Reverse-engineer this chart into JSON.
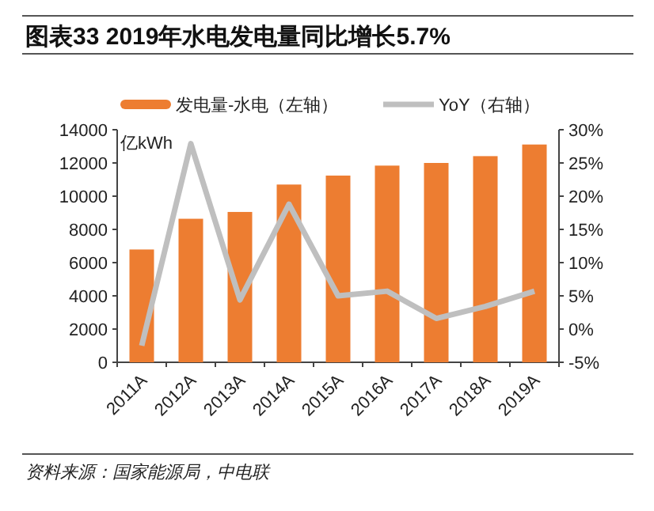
{
  "chart_data": {
    "type": "bar",
    "title": "图表33    2019年水电发电量同比增长5.7%",
    "ylabel": "亿kWh",
    "categories": [
      "2011A",
      "2012A",
      "2013A",
      "2014A",
      "2015A",
      "2016A",
      "2017A",
      "2018A",
      "2019A"
    ],
    "series": [
      {
        "name": "发电量-水电（左轴）",
        "color": "#ed7d31",
        "values": [
          6790,
          8640,
          9050,
          10700,
          11240,
          11840,
          12000,
          12410,
          13110
        ]
      },
      {
        "name": "YoY（右轴）",
        "type": "line",
        "axis": "y2",
        "color": "#bfbfbf",
        "values": [
          -2.5,
          27.9,
          4.4,
          18.8,
          5.0,
          5.7,
          1.6,
          3.4,
          5.7
        ]
      }
    ],
    "ylim": [
      0,
      14000
    ],
    "yticks": [
      0,
      2000,
      4000,
      6000,
      8000,
      10000,
      12000,
      14000
    ],
    "y2lim": [
      -5,
      30
    ],
    "y2ticks": [
      {
        "value": -5,
        "label": "-5%"
      },
      {
        "value": 0,
        "label": "0%"
      },
      {
        "value": 5,
        "label": "5%"
      },
      {
        "value": 10,
        "label": "10%"
      },
      {
        "value": 15,
        "label": "15%"
      },
      {
        "value": 20,
        "label": "20%"
      },
      {
        "value": 25,
        "label": "25%"
      },
      {
        "value": 30,
        "label": "30%"
      }
    ],
    "legend": "top",
    "grid": false,
    "annotations": [
      "资料来源：国家能源局，中电联"
    ]
  }
}
